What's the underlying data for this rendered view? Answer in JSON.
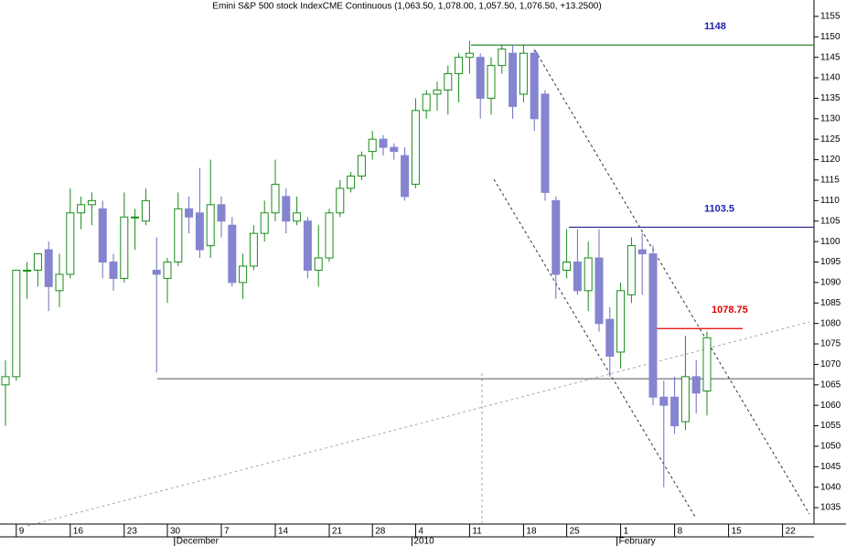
{
  "chart_data": {
    "type": "candlestick",
    "title": "Emini S&P 500 stock IndexCME Continuous (1,063.50, 1,078.00, 1,057.50, 1,076.50, +13.2500)",
    "categories": [
      null,
      "9",
      null,
      null,
      null,
      null,
      "16",
      null,
      null,
      null,
      null,
      "23",
      null,
      null,
      null,
      "30",
      null,
      null,
      null,
      null,
      "7",
      null,
      null,
      null,
      null,
      "14",
      null,
      null,
      null,
      null,
      "21",
      null,
      null,
      null,
      "28",
      null,
      null,
      null,
      "4",
      null,
      null,
      null,
      null,
      "11",
      null,
      null,
      null,
      null,
      "18",
      null,
      null,
      null,
      "25",
      null,
      null,
      null,
      null,
      "1",
      null,
      null,
      null,
      null,
      "8",
      null,
      null,
      null,
      null,
      "15",
      null,
      null,
      null,
      null,
      "22",
      null,
      null
    ],
    "months": [
      null,
      null,
      null,
      null,
      null,
      null,
      null,
      null,
      null,
      null,
      null,
      null,
      null,
      null,
      null,
      null,
      "December",
      null,
      null,
      null,
      null,
      null,
      null,
      null,
      null,
      null,
      null,
      null,
      null,
      null,
      null,
      null,
      null,
      null,
      null,
      null,
      null,
      null,
      "2010",
      null,
      null,
      null,
      null,
      null,
      null,
      null,
      null,
      null,
      null,
      null,
      null,
      null,
      null,
      null,
      null,
      null,
      null,
      "February",
      null,
      null,
      null,
      null,
      null,
      null,
      null,
      null,
      null,
      null,
      null,
      null,
      null,
      null,
      null,
      null,
      null
    ],
    "open": [
      1065,
      1067,
      1093,
      1093,
      1098,
      1088,
      1092,
      1107,
      1109,
      1108,
      1095,
      1091,
      1106,
      1105,
      1093,
      1091,
      1095,
      1108,
      1107,
      1099,
      1109,
      1104,
      1090,
      1094,
      1102,
      1107,
      1111,
      1105,
      1105,
      1093,
      1096,
      1107,
      1113,
      1116,
      1122,
      1125,
      1123,
      1121,
      1114,
      1132,
      1136,
      1137,
      1141,
      1145,
      1145,
      1135,
      1143,
      1146,
      1136,
      1146,
      1136,
      1110,
      1093,
      1095,
      1088,
      1096,
      1081,
      1073,
      1087,
      1098,
      1097,
      1062,
      1062,
      1056,
      1067,
      1063.5,
      null,
      null,
      null,
      null,
      null,
      null,
      null,
      null,
      null
    ],
    "high": [
      1071,
      1093,
      1095,
      1097,
      1100,
      1097,
      1113,
      1111,
      1112,
      1110,
      1097,
      1112,
      1108,
      1113,
      1101,
      1096,
      1112,
      1111,
      1118,
      1120,
      1111,
      1106,
      1097,
      1104,
      1110,
      1120,
      1113,
      1111,
      1106,
      1104,
      1108,
      1115,
      1117,
      1122,
      1127,
      1126,
      1124,
      1123,
      1135,
      1137,
      1139,
      1143,
      1146,
      1149,
      1146,
      1145,
      1148,
      1148,
      1148,
      1147,
      1137,
      1111,
      1103,
      1103,
      1100,
      1103,
      1084,
      1090,
      1101,
      1102,
      1099,
      1066,
      1067,
      1077,
      1071,
      1078,
      null,
      null,
      null,
      null,
      null,
      null,
      null,
      null,
      null
    ],
    "low": [
      1055,
      1066,
      1086,
      1089,
      1083,
      1084,
      1091,
      1103,
      1104,
      1091,
      1088,
      1090,
      1098,
      1104,
      1068,
      1085,
      1094,
      1102,
      1096,
      1096,
      1101,
      1089,
      1086,
      1093,
      1100,
      1105,
      1102,
      1104,
      1091,
      1089,
      1095,
      1106,
      1112,
      1115,
      1120,
      1121,
      1120,
      1110,
      1113,
      1130,
      1132,
      1131,
      1134,
      1141,
      1130,
      1131,
      1141,
      1130,
      1134,
      1127,
      1110,
      1086,
      1091,
      1087,
      1083,
      1078,
      1067,
      1069,
      1085,
      1087,
      1060,
      1040,
      1053,
      1054,
      1058,
      1057.5,
      null,
      null,
      null,
      null,
      null,
      null,
      null,
      null,
      null
    ],
    "close": [
      1067,
      1093,
      1093,
      1097,
      1089,
      1092,
      1107,
      1109,
      1110,
      1095,
      1091,
      1106,
      1106,
      1110,
      1092,
      1095,
      1108,
      1106,
      1098,
      1109,
      1105,
      1090,
      1094,
      1102,
      1107,
      1114,
      1105,
      1107,
      1093,
      1096,
      1107,
      1113,
      1116,
      1121,
      1125,
      1123,
      1122,
      1111,
      1132,
      1136,
      1137,
      1141,
      1145,
      1146,
      1135,
      1143,
      1147,
      1133,
      1146,
      1130,
      1112,
      1092,
      1095,
      1088,
      1096,
      1080,
      1072,
      1088,
      1099,
      1097,
      1062,
      1060,
      1055,
      1067,
      1063,
      1076.5,
      null,
      null,
      null,
      null,
      null,
      null,
      null,
      null,
      null
    ],
    "up_color": "#1a8c1a",
    "down_color": "#8484d0",
    "levels": [
      {
        "value": 1148,
        "color": "#2e8b2e",
        "label_color": "#1f1fb0"
      },
      {
        "value": 1103.5,
        "color": "#23238e",
        "label_color": "#1f1fb0"
      },
      {
        "value": 1078.75,
        "color": "#e00000",
        "label_color": "#e00000"
      }
    ],
    "support_line": 1066.5,
    "ylim": [
      1031,
      1159
    ],
    "yticks": [
      1035,
      1040,
      1045,
      1050,
      1055,
      1060,
      1065,
      1070,
      1075,
      1080,
      1085,
      1090,
      1095,
      1100,
      1105,
      1110,
      1115,
      1120,
      1125,
      1130,
      1135,
      1140,
      1145,
      1150,
      1155
    ]
  }
}
